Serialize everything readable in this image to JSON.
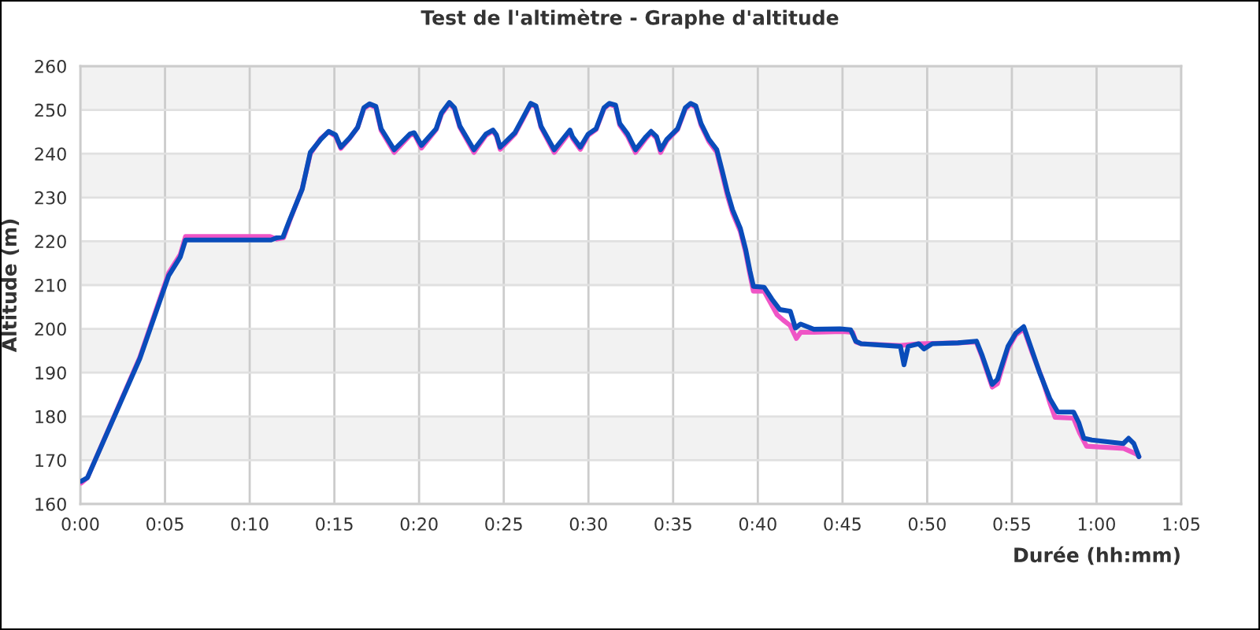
{
  "chart_data": {
    "type": "line",
    "title": "Test de l'altimètre - Graphe d'altitude",
    "xlabel": "Durée (hh:mm)",
    "ylabel": "Altitude (m)",
    "xlim": [
      0,
      65
    ],
    "xticks": [
      {
        "value": 0,
        "label": "0:00"
      },
      {
        "value": 5,
        "label": "0:05"
      },
      {
        "value": 10,
        "label": "0:10"
      },
      {
        "value": 15,
        "label": "0:15"
      },
      {
        "value": 20,
        "label": "0:20"
      },
      {
        "value": 25,
        "label": "0:25"
      },
      {
        "value": 30,
        "label": "0:30"
      },
      {
        "value": 35,
        "label": "0:35"
      },
      {
        "value": 40,
        "label": "0:40"
      },
      {
        "value": 45,
        "label": "0:45"
      },
      {
        "value": 50,
        "label": "0:50"
      },
      {
        "value": 55,
        "label": "0:55"
      },
      {
        "value": 60,
        "label": "1:00"
      },
      {
        "value": 65,
        "label": "1:05"
      }
    ],
    "ylim": [
      160,
      260
    ],
    "yticks": [
      160,
      170,
      180,
      190,
      200,
      210,
      220,
      230,
      240,
      250,
      260
    ],
    "grid": true,
    "line_style": "solid",
    "bands": [
      {
        "axis": "y",
        "from": 170,
        "to": 180,
        "color": "#f2f2f2"
      },
      {
        "axis": "y",
        "from": 190,
        "to": 200,
        "color": "#f2f2f2"
      },
      {
        "axis": "y",
        "from": 210,
        "to": 220,
        "color": "#f2f2f2"
      },
      {
        "axis": "y",
        "from": 230,
        "to": 240,
        "color": "#f2f2f2"
      },
      {
        "axis": "y",
        "from": 250,
        "to": 260,
        "color": "#f2f2f2"
      }
    ],
    "series": [
      {
        "color": "#ef55c6",
        "x": [
          0.05,
          0.42,
          3.51,
          5.22,
          5.9,
          6.21,
          11.2,
          11.6,
          12.0,
          12.34,
          13.1,
          13.58,
          14.2,
          14.66,
          15.07,
          15.38,
          15.9,
          16.37,
          16.74,
          17.08,
          17.45,
          17.76,
          18.53,
          19.46,
          19.71,
          20.14,
          21.01,
          21.32,
          21.79,
          22.09,
          22.41,
          23.24,
          23.95,
          24.36,
          24.57,
          24.79,
          25.66,
          26.12,
          26.59,
          26.9,
          27.2,
          27.98,
          28.91,
          29.06,
          29.52,
          29.99,
          30.45,
          30.92,
          31.23,
          31.6,
          31.85,
          32.31,
          32.78,
          33.4,
          33.7,
          34.02,
          34.26,
          34.63,
          35.26,
          35.72,
          36.03,
          36.34,
          36.65,
          37.11,
          37.58,
          37.89,
          38.2,
          38.51,
          38.97,
          39.28,
          39.53,
          39.74,
          40.37,
          41.14,
          41.5,
          41.9,
          42.28,
          42.53,
          43.3,
          45.0,
          45.6,
          45.8,
          46.1,
          48.4,
          49.5,
          51.8,
          52.9,
          53.22,
          53.84,
          54.15,
          54.77,
          55.23,
          55.7,
          56.2,
          56.8,
          57.25,
          57.55,
          58.64,
          59.0,
          59.41,
          61.6,
          62.36,
          62.5
        ],
        "values": [
          164.8,
          166,
          193.5,
          212.8,
          217,
          221.1,
          221.1,
          220.5,
          220.8,
          224.5,
          232,
          240,
          243.5,
          245,
          244,
          241.2,
          243.5,
          246,
          250.3,
          251.2,
          250.5,
          245.3,
          240.3,
          244.2,
          244.5,
          241.3,
          245.5,
          249,
          251.5,
          250.2,
          246,
          240.3,
          244.2,
          245.2,
          244,
          241,
          244.5,
          247.8,
          251.3,
          250.7,
          246,
          240.3,
          245,
          243.5,
          241,
          244.2,
          245.5,
          250.3,
          251.3,
          250.8,
          246.5,
          244,
          240.3,
          243.5,
          244.8,
          243.5,
          240.3,
          243,
          245.5,
          250.2,
          251.3,
          250.6,
          246.5,
          242.8,
          240.3,
          235.5,
          230.5,
          226.5,
          222.2,
          217.5,
          212.5,
          208.6,
          208.6,
          203.2,
          202,
          200.8,
          197.8,
          199.2,
          199.2,
          199.4,
          199.2,
          197,
          196.6,
          196.2,
          196.6,
          196.8,
          197,
          193.8,
          186.7,
          187.5,
          195.5,
          198.6,
          200,
          194.5,
          188.5,
          183,
          179.8,
          179.6,
          176.2,
          173.2,
          172.7,
          171.4,
          170.8
        ]
      },
      {
        "color": "#0a4cba",
        "x": [
          0.05,
          0.42,
          3.51,
          5.22,
          5.9,
          6.21,
          11.26,
          11.6,
          11.97,
          12.34,
          13.1,
          13.58,
          14.2,
          14.66,
          15.07,
          15.38,
          15.9,
          16.37,
          16.74,
          17.08,
          17.45,
          17.76,
          18.53,
          19.46,
          19.71,
          20.14,
          21.01,
          21.32,
          21.79,
          22.09,
          22.41,
          23.24,
          23.95,
          24.36,
          24.57,
          24.79,
          25.66,
          26.12,
          26.59,
          26.9,
          27.2,
          27.98,
          28.91,
          29.06,
          29.52,
          29.99,
          30.45,
          30.92,
          31.23,
          31.6,
          31.85,
          32.31,
          32.78,
          33.4,
          33.7,
          34.02,
          34.26,
          34.63,
          35.26,
          35.72,
          36.03,
          36.34,
          36.65,
          37.11,
          37.58,
          37.89,
          38.2,
          38.51,
          38.97,
          39.28,
          39.53,
          39.74,
          40.37,
          40.83,
          41.3,
          41.92,
          42.22,
          42.53,
          43.31,
          44.85,
          45.48,
          45.78,
          46.1,
          48.42,
          48.63,
          48.88,
          49.5,
          49.81,
          50.3,
          51.82,
          52.91,
          53.22,
          53.84,
          54.15,
          54.77,
          55.23,
          55.7,
          56.16,
          56.62,
          57.25,
          57.71,
          58.64,
          58.95,
          59.25,
          59.72,
          61.58,
          61.89,
          62.2,
          62.5
        ],
        "values": [
          165.2,
          166,
          193.2,
          212.2,
          216.4,
          220.3,
          220.3,
          220.8,
          221,
          224.7,
          231.9,
          240.3,
          243.3,
          245.1,
          244.3,
          241.5,
          243.6,
          246,
          250.5,
          251.4,
          250.8,
          245.7,
          240.9,
          244.5,
          244.8,
          241.9,
          245.7,
          249.3,
          251.7,
          250.5,
          246.3,
          240.9,
          244.5,
          245.4,
          244.3,
          241.5,
          244.8,
          248.1,
          251.5,
          250.9,
          246.3,
          240.9,
          245.4,
          243.9,
          241.5,
          244.5,
          245.7,
          250.5,
          251.5,
          251.1,
          246.9,
          244.5,
          240.9,
          243.9,
          245.1,
          243.9,
          240.9,
          243.3,
          245.7,
          250.5,
          251.5,
          250.9,
          246.9,
          243.3,
          240.9,
          236.2,
          231.3,
          227.2,
          222.9,
          218.2,
          213.3,
          209.7,
          209.5,
          206.8,
          204.4,
          204,
          200.2,
          201.1,
          199.9,
          200,
          199.8,
          197.2,
          196.6,
          196,
          191.8,
          196,
          196.6,
          195.4,
          196.6,
          196.8,
          197.2,
          194.2,
          187.3,
          188.5,
          196,
          199,
          200.5,
          195.4,
          190.2,
          184,
          181,
          181,
          178.6,
          175,
          174.6,
          173.8,
          175,
          173.8,
          170.8
        ]
      }
    ]
  }
}
